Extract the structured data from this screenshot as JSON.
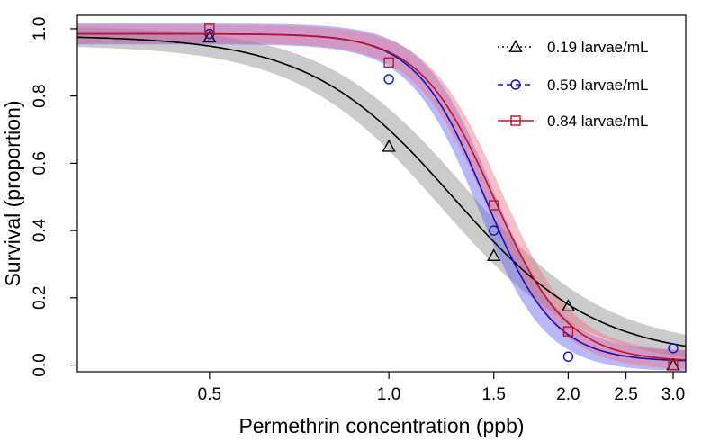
{
  "chart_data": {
    "type": "line",
    "title": "",
    "xlabel": "Permethrin concentration (ppb)",
    "ylabel": "Survival (proportion)",
    "x_scale": "log",
    "xlim": [
      0.3,
      3.15
    ],
    "ylim": [
      -0.02,
      1.04
    ],
    "xticks": [
      0.5,
      1.0,
      1.5,
      2.0,
      2.5,
      3.0
    ],
    "xtick_labels": [
      "0.5",
      "1.0",
      "1.5",
      "2.0",
      "2.5",
      "3.0"
    ],
    "yticks": [
      0.0,
      0.2,
      0.4,
      0.6,
      0.8,
      1.0
    ],
    "ytick_labels": [
      "0.0",
      "0.2",
      "0.4",
      "0.6",
      "0.8",
      "1.0"
    ],
    "legend_position": "top-right",
    "series": [
      {
        "name": "0.19 larvae/mL",
        "marker": "triangle",
        "line_style": "dotted-marker",
        "color": "#000000",
        "band_color": "#8c8c8c",
        "points": [
          {
            "x": 0.5,
            "y": 0.975
          },
          {
            "x": 1.0,
            "y": 0.65
          },
          {
            "x": 1.5,
            "y": 0.325
          },
          {
            "x": 2.0,
            "y": 0.175
          },
          {
            "x": 3.0,
            "y": 0.0
          }
        ],
        "fit": {
          "top": 0.98,
          "bottom": 0.02,
          "ec50": 1.28,
          "hill": 3.6
        },
        "band_halfwidth": 0.07
      },
      {
        "name": "0.59 larvae/mL",
        "marker": "circle",
        "line_style": "dashed",
        "color": "#1010c0",
        "band_color": "#6464f5",
        "points": [
          {
            "x": 0.5,
            "y": 0.985
          },
          {
            "x": 1.0,
            "y": 0.85
          },
          {
            "x": 1.5,
            "y": 0.4
          },
          {
            "x": 2.0,
            "y": 0.025
          },
          {
            "x": 3.0,
            "y": 0.05
          }
        ],
        "fit": {
          "top": 0.985,
          "bottom": 0.01,
          "ec50": 1.45,
          "hill": 7.5
        },
        "band_halfwidth": 0.08
      },
      {
        "name": "0.84 larvae/mL",
        "marker": "square",
        "line_style": "solid",
        "color": "#c0102a",
        "band_color": "#f07080",
        "points": [
          {
            "x": 0.5,
            "y": 1.0
          },
          {
            "x": 1.0,
            "y": 0.9
          },
          {
            "x": 1.5,
            "y": 0.475
          },
          {
            "x": 2.0,
            "y": 0.1
          },
          {
            "x": 3.0,
            "y": 0.0
          }
        ],
        "fit": {
          "top": 0.985,
          "bottom": 0.01,
          "ec50": 1.5,
          "hill": 7.0
        },
        "band_halfwidth": 0.07
      }
    ]
  }
}
